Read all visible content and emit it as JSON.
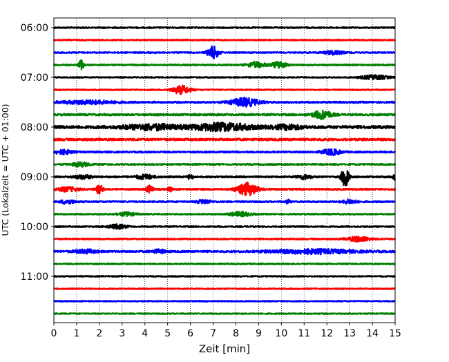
{
  "chart_data": {
    "type": "line",
    "title": "",
    "xlabel": "Zeit  [min]",
    "ylabel": "UTC (Lokalzeit = UTC + 01:00)",
    "xlim": [
      0,
      15
    ],
    "x_ticks": [
      "0",
      "1",
      "2",
      "3",
      "4",
      "5",
      "6",
      "7",
      "8",
      "9",
      "10",
      "11",
      "12",
      "13",
      "14",
      "15"
    ],
    "y_tick_labels": [
      "06:00",
      "07:00",
      "08:00",
      "09:00",
      "10:00",
      "11:00"
    ],
    "vertical_grid": "dotted, every minute",
    "trace_interval_minutes": 15,
    "trace_start": "06:00",
    "trace_colors": [
      "#000000",
      "#ff0000",
      "#0000ff",
      "#008000"
    ],
    "traces": [
      {
        "time": "06:00",
        "color": "#000000",
        "noise": 0.9,
        "events": []
      },
      {
        "time": "06:15",
        "color": "#ff0000",
        "noise": 0.9,
        "events": []
      },
      {
        "time": "06:30",
        "color": "#0000ff",
        "noise": 0.9,
        "events": [
          {
            "t": 7.0,
            "amp": 9,
            "w": 0.25
          },
          {
            "t": 12.3,
            "amp": 3,
            "w": 0.4
          }
        ]
      },
      {
        "time": "06:45",
        "color": "#008000",
        "noise": 1.0,
        "events": [
          {
            "t": 1.2,
            "amp": 7,
            "w": 0.1
          },
          {
            "t": 8.9,
            "amp": 4,
            "w": 0.4
          },
          {
            "t": 9.9,
            "amp": 5,
            "w": 0.3
          }
        ]
      },
      {
        "time": "07:00",
        "color": "#000000",
        "noise": 0.8,
        "events": [
          {
            "t": 14.1,
            "amp": 3,
            "w": 0.6
          }
        ]
      },
      {
        "time": "07:15",
        "color": "#ff0000",
        "noise": 0.8,
        "events": [
          {
            "t": 5.6,
            "amp": 6,
            "w": 0.4
          }
        ]
      },
      {
        "time": "07:30",
        "color": "#0000ff",
        "noise": 1.2,
        "events": [
          {
            "t": 8.4,
            "amp": 6,
            "w": 0.6
          },
          {
            "t": 1.5,
            "amp": 2.5,
            "w": 1.2
          }
        ]
      },
      {
        "time": "07:45",
        "color": "#008000",
        "noise": 1.4,
        "events": [
          {
            "t": 11.8,
            "amp": 6,
            "w": 0.4
          }
        ]
      },
      {
        "time": "08:00",
        "color": "#000000",
        "noise": 2.0,
        "events": [
          {
            "t": 4.3,
            "amp": 3.5,
            "w": 1.2
          },
          {
            "t": 7.4,
            "amp": 5,
            "w": 1.3
          },
          {
            "t": 10.3,
            "amp": 3,
            "w": 0.6
          }
        ]
      },
      {
        "time": "08:15",
        "color": "#ff0000",
        "noise": 1.6,
        "events": []
      },
      {
        "time": "08:30",
        "color": "#0000ff",
        "noise": 1.2,
        "events": [
          {
            "t": 0.4,
            "amp": 3,
            "w": 0.4
          },
          {
            "t": 12.2,
            "amp": 4,
            "w": 0.4
          }
        ]
      },
      {
        "time": "08:45",
        "color": "#008000",
        "noise": 1.0,
        "events": [
          {
            "t": 1.2,
            "amp": 3,
            "w": 0.4
          }
        ]
      },
      {
        "time": "09:00",
        "color": "#000000",
        "noise": 1.2,
        "events": [
          {
            "t": 12.8,
            "amp": 16,
            "w": 0.15
          },
          {
            "t": 4.0,
            "amp": 3,
            "w": 0.4
          },
          {
            "t": 6.0,
            "amp": 4,
            "w": 0.1
          },
          {
            "t": 1.3,
            "amp": 2.5,
            "w": 0.4
          },
          {
            "t": 11.0,
            "amp": 3,
            "w": 0.3
          },
          {
            "t": 15.0,
            "amp": 4,
            "w": 0.1
          }
        ]
      },
      {
        "time": "09:15",
        "color": "#ff0000",
        "noise": 1.1,
        "events": [
          {
            "t": 2.0,
            "amp": 6,
            "w": 0.15
          },
          {
            "t": 4.2,
            "amp": 5,
            "w": 0.15
          },
          {
            "t": 8.5,
            "amp": 9,
            "w": 0.45
          },
          {
            "t": 0.6,
            "amp": 3,
            "w": 0.5
          },
          {
            "t": 5.1,
            "amp": 3,
            "w": 0.1
          }
        ]
      },
      {
        "time": "09:30",
        "color": "#0000ff",
        "noise": 1.1,
        "events": [
          {
            "t": 0.6,
            "amp": 3,
            "w": 0.3
          },
          {
            "t": 6.6,
            "amp": 3,
            "w": 0.3
          },
          {
            "t": 10.3,
            "amp": 3,
            "w": 0.1
          },
          {
            "t": 13.0,
            "amp": 3,
            "w": 0.3
          }
        ]
      },
      {
        "time": "09:45",
        "color": "#008000",
        "noise": 0.9,
        "events": [
          {
            "t": 3.2,
            "amp": 2.5,
            "w": 0.4
          },
          {
            "t": 8.2,
            "amp": 3,
            "w": 0.5
          }
        ]
      },
      {
        "time": "10:00",
        "color": "#000000",
        "noise": 0.9,
        "events": [
          {
            "t": 2.8,
            "amp": 3,
            "w": 0.4
          }
        ]
      },
      {
        "time": "10:15",
        "color": "#ff0000",
        "noise": 1.0,
        "events": [
          {
            "t": 13.4,
            "amp": 3.5,
            "w": 0.5
          }
        ]
      },
      {
        "time": "10:30",
        "color": "#0000ff",
        "noise": 1.3,
        "events": [
          {
            "t": 11.4,
            "amp": 3,
            "w": 1.8
          },
          {
            "t": 1.4,
            "amp": 2.5,
            "w": 0.5
          },
          {
            "t": 4.6,
            "amp": 2.5,
            "w": 0.3
          }
        ]
      },
      {
        "time": "10:45",
        "color": "#008000",
        "noise": 0.9,
        "events": []
      },
      {
        "time": "11:00",
        "color": "#000000",
        "noise": 0.8,
        "events": []
      },
      {
        "time": "11:15",
        "color": "#ff0000",
        "noise": 0.8,
        "events": []
      },
      {
        "time": "11:30",
        "color": "#0000ff",
        "noise": 0.8,
        "events": []
      },
      {
        "time": "11:45",
        "color": "#008000",
        "noise": 0.8,
        "events": []
      }
    ]
  }
}
